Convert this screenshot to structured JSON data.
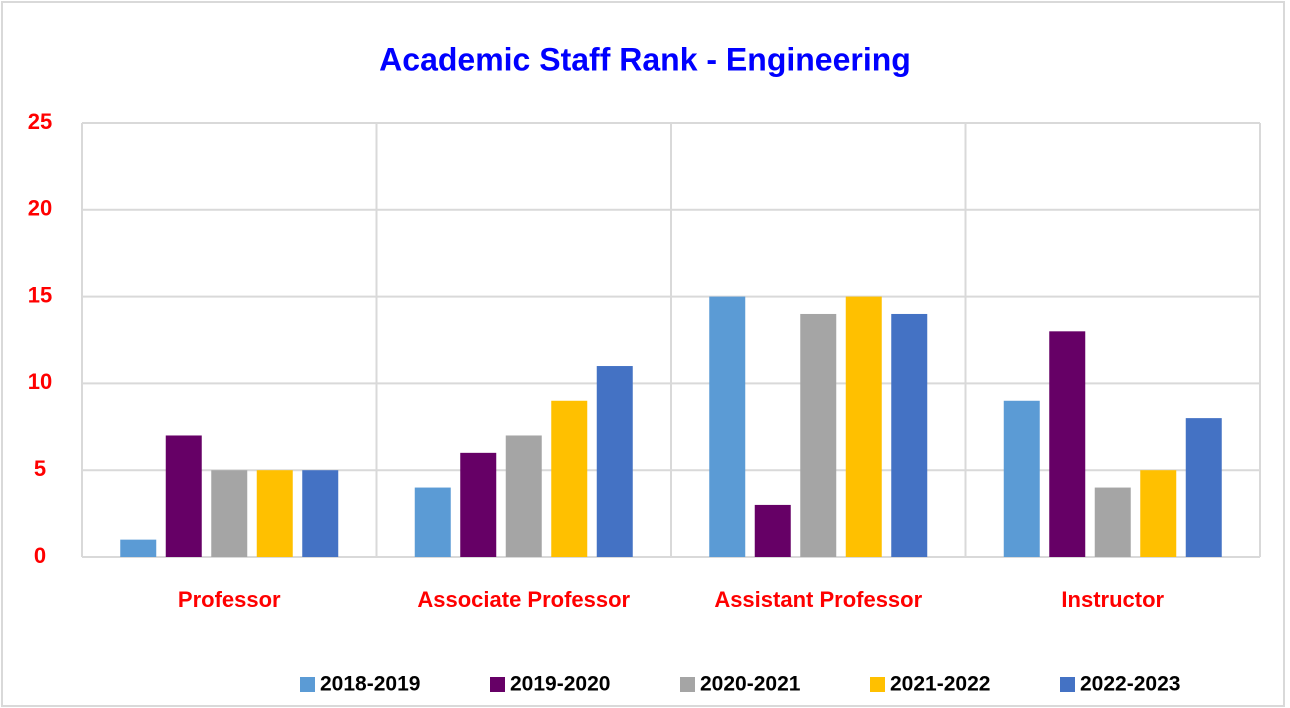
{
  "chart_data": {
    "type": "bar",
    "title": "Academic Staff Rank - Engineering",
    "categories": [
      "Professor",
      "Associate Professor",
      "Assistant Professor",
      "Instructor"
    ],
    "series": [
      {
        "name": "2018-2019",
        "color": "#5b9bd5",
        "values": [
          1,
          4,
          15,
          9
        ]
      },
      {
        "name": "2019-2020",
        "color": "#660066",
        "values": [
          7,
          6,
          3,
          13
        ]
      },
      {
        "name": "2020-2021",
        "color": "#a5a5a5",
        "values": [
          5,
          7,
          14,
          4
        ]
      },
      {
        "name": "2021-2022",
        "color": "#ffc000",
        "values": [
          5,
          9,
          15,
          5
        ]
      },
      {
        "name": "2022-2023",
        "color": "#4472c4",
        "values": [
          5,
          11,
          14,
          8
        ]
      }
    ],
    "ylim": [
      0,
      25
    ],
    "yticks": [
      0,
      5,
      10,
      15,
      20,
      25
    ],
    "grid": true,
    "legend": "bottom"
  }
}
